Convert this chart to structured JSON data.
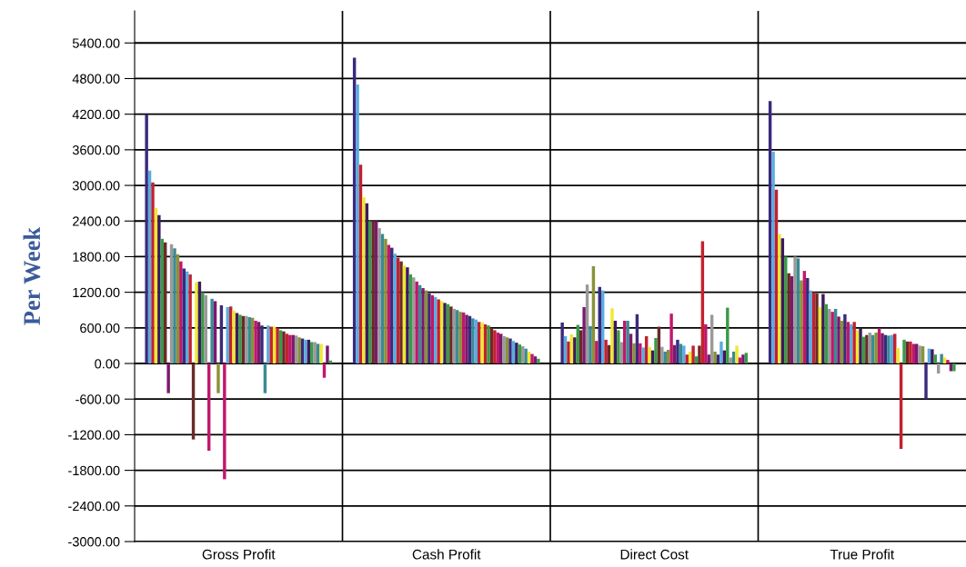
{
  "chart_data": {
    "type": "bar",
    "ylabel": "Per Week",
    "categories": [
      "Gross Profit",
      "Cash Profit",
      "Direct Cost",
      "True Profit"
    ],
    "ylim": [
      -3000,
      5940
    ],
    "yticks": [
      {
        "value": -3000,
        "label": "-3000.00"
      },
      {
        "value": -2400,
        "label": "-2400.00"
      },
      {
        "value": -1800,
        "label": "-1800.00"
      },
      {
        "value": -1200,
        "label": "-1200.00"
      },
      {
        "value": -600,
        "label": "-600.00"
      },
      {
        "value": 0,
        "label": "0.00"
      },
      {
        "value": 600,
        "label": "600.00"
      },
      {
        "value": 1200,
        "label": "1200.00"
      },
      {
        "value": 1800,
        "label": "1800.00"
      },
      {
        "value": 2400,
        "label": "2400.00"
      },
      {
        "value": 3000,
        "label": "3000.00"
      },
      {
        "value": 3600,
        "label": "3600.00"
      },
      {
        "value": 4200,
        "label": "4200.00"
      },
      {
        "value": 4800,
        "label": "4800.00"
      },
      {
        "value": 5400,
        "label": "5400.00"
      }
    ],
    "grid": "y",
    "legend": false,
    "series": [
      {
        "color": "#3a2a7a",
        "values": [
          4200,
          5150,
          690,
          4420
        ]
      },
      {
        "color": "#5aace0",
        "values": [
          3250,
          4700,
          460,
          3570
        ]
      },
      {
        "color": "#c4202e",
        "values": [
          3050,
          3350,
          370,
          2930
        ]
      },
      {
        "color": "#f0e830",
        "values": [
          2620,
          2800,
          490,
          2180
        ]
      },
      {
        "color": "#3c1a5c",
        "values": [
          2500,
          2700,
          440,
          2110
        ]
      },
      {
        "color": "#3a9a48",
        "values": [
          2100,
          2400,
          650,
          1800
        ]
      },
      {
        "color": "#6a2a28",
        "values": [
          2040,
          2400,
          560,
          1520
        ]
      },
      {
        "color": "#7a1a6e",
        "values": [
          -500,
          2400,
          950,
          1470
        ]
      },
      {
        "color": "#9a9a9a",
        "values": [
          2010,
          2280,
          1330,
          1800
        ]
      },
      {
        "color": "#3a8a94",
        "values": [
          1940,
          2180,
          630,
          1770
        ]
      },
      {
        "color": "#8a9238",
        "values": [
          1840,
          2100,
          1640,
          1400
        ]
      },
      {
        "color": "#c0186a",
        "values": [
          1720,
          2000,
          380,
          1560
        ]
      },
      {
        "color": "#3a2a7a",
        "values": [
          1600,
          1950,
          1290,
          1440
        ]
      },
      {
        "color": "#5aace0",
        "values": [
          1550,
          1850,
          1230,
          1230
        ]
      },
      {
        "color": "#c4202e",
        "values": [
          1500,
          1780,
          400,
          1200
        ]
      },
      {
        "color": "#6a2a28",
        "values": [
          -1280,
          1720,
          310,
          1180
        ]
      },
      {
        "color": "#f0e830",
        "values": [
          1370,
          1650,
          930,
          950
        ]
      },
      {
        "color": "#3c1a5c",
        "values": [
          1380,
          1620,
          720,
          1170
        ]
      },
      {
        "color": "#3a9a48",
        "values": [
          1200,
          1500,
          560,
          1000
        ]
      },
      {
        "color": "#9a9a9a",
        "values": [
          1150,
          1450,
          360,
          920
        ]
      },
      {
        "color": "#c0186a",
        "values": [
          -1470,
          1380,
          720,
          870
        ]
      },
      {
        "color": "#3a8a94",
        "values": [
          1090,
          1320,
          720,
          920
        ]
      },
      {
        "color": "#7a1a6e",
        "values": [
          1050,
          1270,
          500,
          790
        ]
      },
      {
        "color": "#8a9238",
        "values": [
          -500,
          1230,
          340,
          720
        ]
      },
      {
        "color": "#3a2a7a",
        "values": [
          980,
          1180,
          830,
          830
        ]
      },
      {
        "color": "#c0186a",
        "values": [
          -1950,
          1150,
          340,
          700
        ]
      },
      {
        "color": "#5aace0",
        "values": [
          950,
          1120,
          270,
          660
        ]
      },
      {
        "color": "#c4202e",
        "values": [
          960,
          1080,
          460,
          700
        ]
      },
      {
        "color": "#f0e830",
        "values": [
          890,
          1050,
          280,
          560
        ]
      },
      {
        "color": "#3c1a5c",
        "values": [
          850,
          1020,
          220,
          600
        ]
      },
      {
        "color": "#3a9a48",
        "values": [
          820,
          1000,
          430,
          450
        ]
      },
      {
        "color": "#6a2a28",
        "values": [
          800,
          960,
          620,
          480
        ]
      },
      {
        "color": "#9a9a9a",
        "values": [
          800,
          920,
          280,
          520
        ]
      },
      {
        "color": "#3a8a94",
        "values": [
          780,
          900,
          200,
          480
        ]
      },
      {
        "color": "#8a9238",
        "values": [
          770,
          870,
          230,
          520
        ]
      },
      {
        "color": "#c0186a",
        "values": [
          720,
          860,
          840,
          590
        ]
      },
      {
        "color": "#7a1a6e",
        "values": [
          700,
          820,
          310,
          510
        ]
      },
      {
        "color": "#3a2a7a",
        "values": [
          640,
          800,
          400,
          480
        ]
      },
      {
        "color": "#3a8a94",
        "values": [
          -500,
          760,
          330,
          470
        ]
      },
      {
        "color": "#5aace0",
        "values": [
          640,
          740,
          300,
          480
        ]
      },
      {
        "color": "#c4202e",
        "values": [
          620,
          700,
          150,
          500
        ]
      },
      {
        "color": "#f0e830",
        "values": [
          620,
          690,
          200,
          260
        ]
      },
      {
        "color": "#c4202e",
        "values": [
          600,
          660,
          300,
          -1440
        ]
      },
      {
        "color": "#3a9a48",
        "values": [
          560,
          640,
          120,
          400
        ]
      },
      {
        "color": "#6a2a28",
        "values": [
          540,
          600,
          300,
          370
        ]
      },
      {
        "color": "#c4202e",
        "values": [
          500,
          560,
          2060,
          370
        ]
      },
      {
        "color": "#c0186a",
        "values": [
          480,
          520,
          660,
          330
        ]
      },
      {
        "color": "#7a1a6e",
        "values": [
          480,
          500,
          150,
          330
        ]
      },
      {
        "color": "#9a9a9a",
        "values": [
          470,
          460,
          820,
          300
        ]
      },
      {
        "color": "#8a9238",
        "values": [
          440,
          440,
          200,
          290
        ]
      },
      {
        "color": "#3a2a7a",
        "values": [
          420,
          420,
          150,
          -600
        ]
      },
      {
        "color": "#5aace0",
        "values": [
          400,
          380,
          370,
          250
        ]
      },
      {
        "color": "#3c1a5c",
        "values": [
          400,
          350,
          220,
          240
        ]
      },
      {
        "color": "#3a9a48",
        "values": [
          360,
          320,
          940,
          150
        ]
      },
      {
        "color": "#9a9a9a",
        "values": [
          360,
          290,
          100,
          -170
        ]
      },
      {
        "color": "#3a8a94",
        "values": [
          330,
          250,
          200,
          160
        ]
      },
      {
        "color": "#f0e830",
        "values": [
          330,
          200,
          300,
          100
        ]
      },
      {
        "color": "#c0186a",
        "values": [
          -240,
          160,
          100,
          60
        ]
      },
      {
        "color": "#7a1a6e",
        "values": [
          300,
          120,
          150,
          -130
        ]
      },
      {
        "color": "#3a9a48",
        "values": [
          50,
          80,
          180,
          -130
        ]
      }
    ]
  }
}
